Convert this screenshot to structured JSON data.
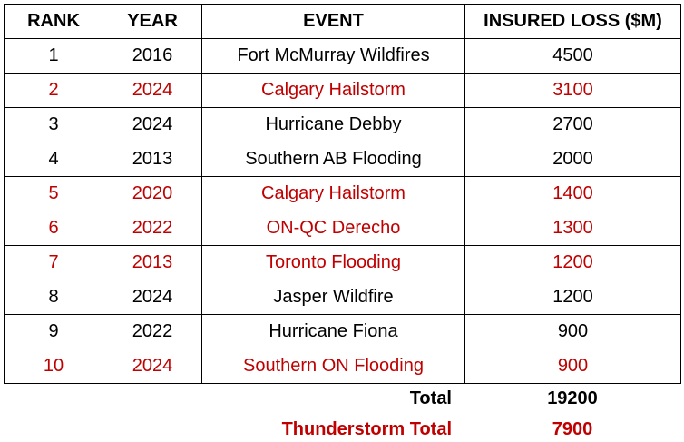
{
  "table": {
    "columns": [
      "RANK",
      "YEAR",
      "EVENT",
      "INSURED LOSS ($M)"
    ],
    "rows": [
      {
        "cells": [
          1,
          2016,
          "Fort McMurray Wildfires",
          4500
        ],
        "color": "#000000"
      },
      {
        "cells": [
          2,
          2024,
          "Calgary Hailstorm",
          3100
        ],
        "color": "#c00000"
      },
      {
        "cells": [
          3,
          2024,
          "Hurricane Debby",
          2700
        ],
        "color": "#000000"
      },
      {
        "cells": [
          4,
          2013,
          "Southern AB Flooding",
          2000
        ],
        "color": "#000000"
      },
      {
        "cells": [
          5,
          2020,
          "Calgary Hailstorm",
          1400
        ],
        "color": "#c00000"
      },
      {
        "cells": [
          6,
          2022,
          "ON-QC Derecho",
          1300
        ],
        "color": "#c00000"
      },
      {
        "cells": [
          7,
          2013,
          "Toronto Flooding",
          1200
        ],
        "color": "#c00000"
      },
      {
        "cells": [
          8,
          2024,
          "Jasper Wildfire",
          1200
        ],
        "color": "#000000"
      },
      {
        "cells": [
          9,
          2022,
          "Hurricane Fiona",
          900
        ],
        "color": "#000000"
      },
      {
        "cells": [
          10,
          2024,
          "Southern ON Flooding",
          900
        ],
        "color": "#c00000"
      }
    ],
    "totals": [
      {
        "label": "Total",
        "value": 19200,
        "color": "#000000"
      },
      {
        "label": "Thunderstorm Total",
        "value": 7900,
        "color": "#c00000"
      }
    ]
  }
}
